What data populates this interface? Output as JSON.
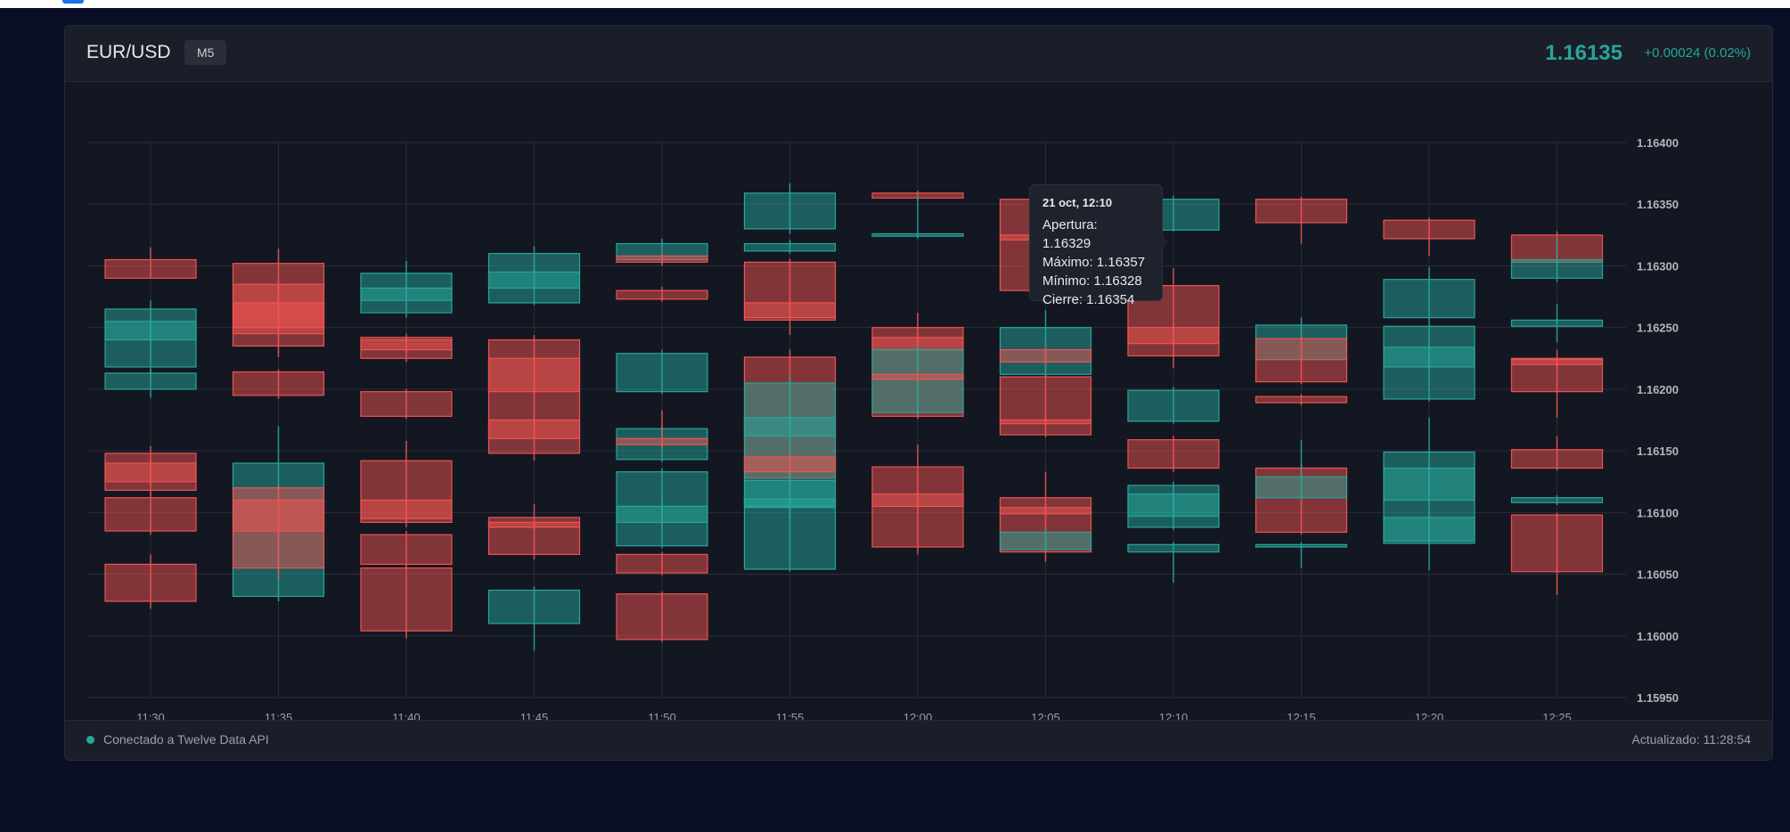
{
  "header": {
    "symbol": "EUR/USD",
    "timeframe": "M5",
    "price": "1.16135",
    "change": "+0.00024 (0.02%)"
  },
  "tooltip": {
    "title": "21 oct, 12:10",
    "open": "Apertura: 1.16329",
    "high": "Máximo: 1.16357",
    "low": "Mínimo: 1.16328",
    "close": "Cierre: 1.16354"
  },
  "footer": {
    "status": "Conectado a Twelve Data API",
    "updated": "Actualizado: 11:28:54"
  },
  "colors": {
    "up": "#26a69a",
    "down": "#ef5350",
    "grid": "#2a2e39",
    "axis_text": "#9aa0ad",
    "price_label": "#b2b5be"
  },
  "chart_data": {
    "type": "candlestick",
    "y_ticks": [
      "1.16400",
      "1.16350",
      "1.16300",
      "1.16250",
      "1.16200",
      "1.16150",
      "1.16100",
      "1.16050",
      "1.16000",
      "1.15950"
    ],
    "ylim": [
      1.1595,
      1.164
    ],
    "grid": true,
    "categories": [
      "11:30",
      "11:35",
      "11:40",
      "11:45",
      "11:50",
      "11:55",
      "12:00",
      "12:05",
      "12:10",
      "12:15",
      "12:20",
      "12:25"
    ],
    "candles": [
      {
        "x": "11:30",
        "o": 1.16305,
        "c": 1.1629,
        "h": 1.16315,
        "l": 1.1629
      },
      {
        "x": "11:30",
        "o": 1.16218,
        "c": 1.16265,
        "h": 1.16272,
        "l": 1.16212
      },
      {
        "x": "11:30",
        "o": 1.1624,
        "c": 1.16255,
        "h": 1.16258,
        "l": 1.16238
      },
      {
        "x": "11:30",
        "o": 1.162,
        "c": 1.16213,
        "h": 1.16216,
        "l": 1.16193
      },
      {
        "x": "11:30",
        "o": 1.16148,
        "c": 1.16118,
        "h": 1.16154,
        "l": 1.16114
      },
      {
        "x": "11:30",
        "o": 1.1614,
        "c": 1.16125,
        "h": 1.16143,
        "l": 1.16122
      },
      {
        "x": "11:30",
        "o": 1.16112,
        "c": 1.16085,
        "h": 1.16116,
        "l": 1.16082
      },
      {
        "x": "11:30",
        "o": 1.16058,
        "c": 1.16028,
        "h": 1.16066,
        "l": 1.16022
      },
      {
        "x": "11:35",
        "o": 1.16302,
        "c": 1.16235,
        "h": 1.16314,
        "l": 1.16226
      },
      {
        "x": "11:35",
        "o": 1.16285,
        "c": 1.16245,
        "h": 1.16288,
        "l": 1.16242
      },
      {
        "x": "11:35",
        "o": 1.1627,
        "c": 1.1625,
        "h": 1.16272,
        "l": 1.16248
      },
      {
        "x": "11:35",
        "o": 1.16214,
        "c": 1.16195,
        "h": 1.16216,
        "l": 1.16192
      },
      {
        "x": "11:35",
        "o": 1.16032,
        "c": 1.1614,
        "h": 1.1617,
        "l": 1.16028
      },
      {
        "x": "11:35",
        "o": 1.1612,
        "c": 1.16085,
        "h": 1.16122,
        "l": 1.16082
      },
      {
        "x": "11:35",
        "o": 1.1611,
        "c": 1.16055,
        "h": 1.16112,
        "l": 1.16045
      },
      {
        "x": "11:40",
        "o": 1.16262,
        "c": 1.16294,
        "h": 1.16304,
        "l": 1.16258
      },
      {
        "x": "11:40",
        "o": 1.16272,
        "c": 1.16282,
        "h": 1.16285,
        "l": 1.1627
      },
      {
        "x": "11:40",
        "o": 1.16242,
        "c": 1.16225,
        "h": 1.16245,
        "l": 1.16222
      },
      {
        "x": "11:40",
        "o": 1.1624,
        "c": 1.16232,
        "h": 1.16242,
        "l": 1.1623
      },
      {
        "x": "11:40",
        "o": 1.16198,
        "c": 1.16178,
        "h": 1.162,
        "l": 1.16176
      },
      {
        "x": "11:40",
        "o": 1.16142,
        "c": 1.16092,
        "h": 1.16158,
        "l": 1.16088
      },
      {
        "x": "11:40",
        "o": 1.1611,
        "c": 1.16095,
        "h": 1.16112,
        "l": 1.16092
      },
      {
        "x": "11:40",
        "o": 1.16082,
        "c": 1.16058,
        "h": 1.16085,
        "l": 1.16056
      },
      {
        "x": "11:40",
        "o": 1.16055,
        "c": 1.16004,
        "h": 1.16058,
        "l": 1.15998
      },
      {
        "x": "11:45",
        "o": 1.1627,
        "c": 1.1631,
        "h": 1.16316,
        "l": 1.16268
      },
      {
        "x": "11:45",
        "o": 1.16282,
        "c": 1.16295,
        "h": 1.16298,
        "l": 1.1628
      },
      {
        "x": "11:45",
        "o": 1.1624,
        "c": 1.16148,
        "h": 1.16244,
        "l": 1.16142
      },
      {
        "x": "11:45",
        "o": 1.16225,
        "c": 1.16198,
        "h": 1.16228,
        "l": 1.16195
      },
      {
        "x": "11:45",
        "o": 1.16175,
        "c": 1.1616,
        "h": 1.16178,
        "l": 1.16158
      },
      {
        "x": "11:45",
        "o": 1.16096,
        "c": 1.16066,
        "h": 1.16107,
        "l": 1.16062
      },
      {
        "x": "11:45",
        "o": 1.16092,
        "c": 1.16088,
        "h": 1.16094,
        "l": 1.16086
      },
      {
        "x": "11:45",
        "o": 1.1601,
        "c": 1.16037,
        "h": 1.1604,
        "l": 1.15988
      },
      {
        "x": "11:50",
        "o": 1.16305,
        "c": 1.16318,
        "h": 1.16322,
        "l": 1.16302
      },
      {
        "x": "11:50",
        "o": 1.16308,
        "c": 1.16303,
        "h": 1.1631,
        "l": 1.163
      },
      {
        "x": "11:50",
        "o": 1.1628,
        "c": 1.16273,
        "h": 1.16283,
        "l": 1.16271
      },
      {
        "x": "11:50",
        "o": 1.16198,
        "c": 1.16229,
        "h": 1.16232,
        "l": 1.16196
      },
      {
        "x": "11:50",
        "o": 1.16143,
        "c": 1.16168,
        "h": 1.16171,
        "l": 1.16141
      },
      {
        "x": "11:50",
        "o": 1.1616,
        "c": 1.16155,
        "h": 1.16183,
        "l": 1.16152
      },
      {
        "x": "11:50",
        "o": 1.16073,
        "c": 1.16133,
        "h": 1.16136,
        "l": 1.16071
      },
      {
        "x": "11:50",
        "o": 1.16092,
        "c": 1.16105,
        "h": 1.16108,
        "l": 1.1609
      },
      {
        "x": "11:50",
        "o": 1.16066,
        "c": 1.16051,
        "h": 1.16068,
        "l": 1.16049
      },
      {
        "x": "11:50",
        "o": 1.16034,
        "c": 1.15997,
        "h": 1.16036,
        "l": 1.15995
      },
      {
        "x": "11:55",
        "o": 1.1633,
        "c": 1.16359,
        "h": 1.16367,
        "l": 1.16326
      },
      {
        "x": "11:55",
        "o": 1.16312,
        "c": 1.16318,
        "h": 1.16321,
        "l": 1.1631
      },
      {
        "x": "11:55",
        "o": 1.16303,
        "c": 1.16256,
        "h": 1.16306,
        "l": 1.16244
      },
      {
        "x": "11:55",
        "o": 1.1627,
        "c": 1.16258,
        "h": 1.16273,
        "l": 1.16256
      },
      {
        "x": "11:55",
        "o": 1.16226,
        "c": 1.16128,
        "h": 1.16232,
        "l": 1.16122
      },
      {
        "x": "11:55",
        "o": 1.16105,
        "c": 1.16205,
        "h": 1.16212,
        "l": 1.16095
      },
      {
        "x": "11:55",
        "o": 1.16162,
        "c": 1.16177,
        "h": 1.1618,
        "l": 1.1616
      },
      {
        "x": "11:55",
        "o": 1.16145,
        "c": 1.16133,
        "h": 1.16148,
        "l": 1.1613
      },
      {
        "x": "11:55",
        "o": 1.16054,
        "c": 1.16126,
        "h": 1.16131,
        "l": 1.16052
      },
      {
        "x": "11:55",
        "o": 1.16104,
        "c": 1.16111,
        "h": 1.16114,
        "l": 1.16102
      },
      {
        "x": "12:00",
        "o": 1.16359,
        "c": 1.16355,
        "h": 1.16361,
        "l": 1.16353
      },
      {
        "x": "12:00",
        "o": 1.16324,
        "c": 1.16326,
        "h": 1.16357,
        "l": 1.16322
      },
      {
        "x": "12:00",
        "o": 1.1625,
        "c": 1.16178,
        "h": 1.16262,
        "l": 1.16176
      },
      {
        "x": "12:00",
        "o": 1.16242,
        "c": 1.16232,
        "h": 1.16245,
        "l": 1.1623
      },
      {
        "x": "12:00",
        "o": 1.16181,
        "c": 1.16232,
        "h": 1.16236,
        "l": 1.16179
      },
      {
        "x": "12:00",
        "o": 1.16212,
        "c": 1.16208,
        "h": 1.16214,
        "l": 1.16206
      },
      {
        "x": "12:00",
        "o": 1.16137,
        "c": 1.16072,
        "h": 1.16155,
        "l": 1.16066
      },
      {
        "x": "12:00",
        "o": 1.16115,
        "c": 1.16105,
        "h": 1.16118,
        "l": 1.16102
      },
      {
        "x": "12:05",
        "o": 1.16354,
        "c": 1.1628,
        "h": 1.16357,
        "l": 1.16275
      },
      {
        "x": "12:05",
        "o": 1.16325,
        "c": 1.16321,
        "h": 1.16327,
        "l": 1.16319
      },
      {
        "x": "12:05",
        "o": 1.16212,
        "c": 1.1625,
        "h": 1.16264,
        "l": 1.1621
      },
      {
        "x": "12:05",
        "o": 1.16232,
        "c": 1.16222,
        "h": 1.16234,
        "l": 1.1622
      },
      {
        "x": "12:05",
        "o": 1.1621,
        "c": 1.16163,
        "h": 1.16212,
        "l": 1.16161
      },
      {
        "x": "12:05",
        "o": 1.16175,
        "c": 1.16172,
        "h": 1.16177,
        "l": 1.1617
      },
      {
        "x": "12:05",
        "o": 1.16112,
        "c": 1.16068,
        "h": 1.16133,
        "l": 1.1606
      },
      {
        "x": "12:05",
        "o": 1.16104,
        "c": 1.16099,
        "h": 1.16106,
        "l": 1.16097
      },
      {
        "x": "12:05",
        "o": 1.1607,
        "c": 1.16084,
        "h": 1.16087,
        "l": 1.16068
      },
      {
        "x": "12:10",
        "o": 1.16329,
        "c": 1.16354,
        "h": 1.16357,
        "l": 1.16328
      },
      {
        "x": "12:10",
        "o": 1.16284,
        "c": 1.16227,
        "h": 1.16298,
        "l": 1.16217
      },
      {
        "x": "12:10",
        "o": 1.1625,
        "c": 1.16237,
        "h": 1.16252,
        "l": 1.16235
      },
      {
        "x": "12:10",
        "o": 1.16174,
        "c": 1.16199,
        "h": 1.16202,
        "l": 1.16172
      },
      {
        "x": "12:10",
        "o": 1.16159,
        "c": 1.16136,
        "h": 1.16162,
        "l": 1.16133
      },
      {
        "x": "12:10",
        "o": 1.16088,
        "c": 1.16122,
        "h": 1.16125,
        "l": 1.16086
      },
      {
        "x": "12:10",
        "o": 1.16097,
        "c": 1.16115,
        "h": 1.16117,
        "l": 1.16095
      },
      {
        "x": "12:10",
        "o": 1.16068,
        "c": 1.16074,
        "h": 1.16076,
        "l": 1.16043
      },
      {
        "x": "12:15",
        "o": 1.16354,
        "c": 1.16335,
        "h": 1.16356,
        "l": 1.16318
      },
      {
        "x": "12:15",
        "o": 1.16224,
        "c": 1.16252,
        "h": 1.16258,
        "l": 1.16222
      },
      {
        "x": "12:15",
        "o": 1.16241,
        "c": 1.16206,
        "h": 1.16244,
        "l": 1.16204
      },
      {
        "x": "12:15",
        "o": 1.16194,
        "c": 1.16189,
        "h": 1.16196,
        "l": 1.16187
      },
      {
        "x": "12:15",
        "o": 1.16136,
        "c": 1.16084,
        "h": 1.16139,
        "l": 1.16082
      },
      {
        "x": "12:15",
        "o": 1.16112,
        "c": 1.16129,
        "h": 1.16159,
        "l": 1.1611
      },
      {
        "x": "12:15",
        "o": 1.16072,
        "c": 1.16074,
        "h": 1.16076,
        "l": 1.16055
      },
      {
        "x": "12:20",
        "o": 1.16337,
        "c": 1.16322,
        "h": 1.16339,
        "l": 1.16308
      },
      {
        "x": "12:20",
        "o": 1.16258,
        "c": 1.16289,
        "h": 1.16299,
        "l": 1.16256
      },
      {
        "x": "12:20",
        "o": 1.16192,
        "c": 1.16251,
        "h": 1.16256,
        "l": 1.1619
      },
      {
        "x": "12:20",
        "o": 1.16218,
        "c": 1.16234,
        "h": 1.16236,
        "l": 1.16216
      },
      {
        "x": "12:20",
        "o": 1.16075,
        "c": 1.16149,
        "h": 1.16177,
        "l": 1.16053
      },
      {
        "x": "12:20",
        "o": 1.1611,
        "c": 1.16136,
        "h": 1.16139,
        "l": 1.16108
      },
      {
        "x": "12:20",
        "o": 1.16077,
        "c": 1.16096,
        "h": 1.16099,
        "l": 1.16075
      },
      {
        "x": "12:25",
        "o": 1.16325,
        "c": 1.16303,
        "h": 1.16328,
        "l": 1.163
      },
      {
        "x": "12:25",
        "o": 1.1629,
        "c": 1.16305,
        "h": 1.16322,
        "l": 1.16287
      },
      {
        "x": "12:25",
        "o": 1.16251,
        "c": 1.16256,
        "h": 1.16269,
        "l": 1.16238
      },
      {
        "x": "12:25",
        "o": 1.16225,
        "c": 1.16198,
        "h": 1.16232,
        "l": 1.16177
      },
      {
        "x": "12:25",
        "o": 1.16224,
        "c": 1.1622,
        "h": 1.16226,
        "l": 1.16218
      },
      {
        "x": "12:25",
        "o": 1.16151,
        "c": 1.16136,
        "h": 1.16162,
        "l": 1.16134
      },
      {
        "x": "12:25",
        "o": 1.16108,
        "c": 1.16112,
        "h": 1.16114,
        "l": 1.16106
      },
      {
        "x": "12:25",
        "o": 1.16098,
        "c": 1.16052,
        "h": 1.161,
        "l": 1.16033
      }
    ]
  }
}
